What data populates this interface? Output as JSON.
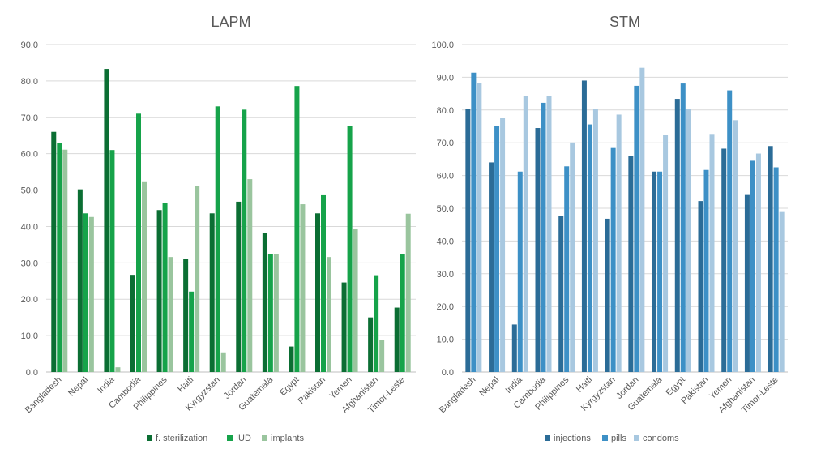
{
  "chart_data": [
    {
      "type": "bar",
      "title": "LAPM",
      "categories": [
        "Bangladesh",
        "Nepal",
        "India",
        "Cambodia",
        "Philippines",
        "Haiti",
        "Kyrgyzstan",
        "Jordan",
        "Guatemala",
        "Egypt",
        "Pakistan",
        "Yemen",
        "Afghanistan",
        "Timor-Leste"
      ],
      "series": [
        {
          "name": "f. sterilization",
          "color": "#0b6e33",
          "values": [
            66.0,
            50.2,
            83.3,
            26.7,
            44.5,
            31.1,
            43.6,
            46.8,
            38.1,
            7.0,
            43.6,
            24.6,
            15.0,
            17.7
          ]
        },
        {
          "name": "IUD",
          "color": "#16a34a",
          "values": [
            62.9,
            43.6,
            61.0,
            71.0,
            46.5,
            22.1,
            73.0,
            72.1,
            32.5,
            78.6,
            48.8,
            67.5,
            26.6,
            32.3
          ]
        },
        {
          "name": "implants",
          "color": "#9ac59e",
          "values": [
            61.1,
            42.6,
            1.3,
            52.4,
            31.6,
            51.2,
            5.4,
            53.0,
            32.5,
            46.1,
            31.6,
            39.2,
            8.8,
            43.5
          ]
        }
      ],
      "ylim": [
        0,
        90
      ],
      "yticks": [
        "0.0",
        "10.0",
        "20.0",
        "30.0",
        "40.0",
        "50.0",
        "60.0",
        "70.0",
        "80.0",
        "90.0"
      ],
      "grid": true,
      "legend": "bottom"
    },
    {
      "type": "bar",
      "title": "STM",
      "categories": [
        "Bangladesh",
        "Nepal",
        "India",
        "Cambodia",
        "Philippines",
        "Haiti",
        "Kyrgyzstan",
        "Jordan",
        "Guatemala",
        "Egypt",
        "Pakistan",
        "Yemen",
        "Afghanistan",
        "Timor-Leste"
      ],
      "series": [
        {
          "name": "injections",
          "color": "#2b6c97",
          "values": [
            80.2,
            64.0,
            14.5,
            74.5,
            47.6,
            89.0,
            46.8,
            65.9,
            61.2,
            83.4,
            52.2,
            68.2,
            54.3,
            69.0
          ]
        },
        {
          "name": "pills",
          "color": "#3d90c6",
          "values": [
            91.4,
            75.1,
            61.2,
            82.2,
            62.8,
            75.6,
            68.4,
            87.4,
            61.2,
            88.1,
            61.7,
            86.0,
            64.5,
            62.5
          ]
        },
        {
          "name": "condoms",
          "color": "#a8c8e0",
          "values": [
            88.2,
            77.7,
            84.4,
            84.4,
            70.1,
            80.2,
            78.6,
            92.9,
            72.3,
            80.2,
            72.7,
            76.9,
            66.7,
            49.1
          ]
        }
      ],
      "ylim": [
        0,
        100
      ],
      "yticks": [
        "0.0",
        "10.0",
        "20.0",
        "30.0",
        "40.0",
        "50.0",
        "60.0",
        "70.0",
        "80.0",
        "90.0",
        "100.0"
      ],
      "grid": true,
      "legend": "bottom"
    }
  ]
}
